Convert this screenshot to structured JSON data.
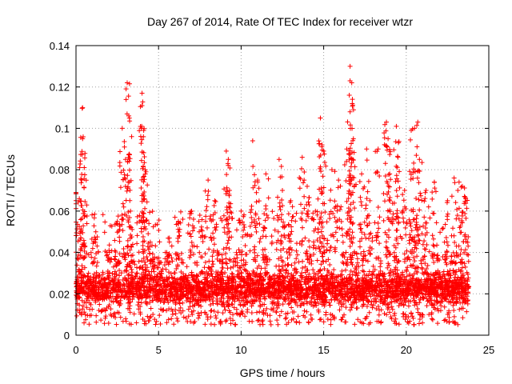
{
  "chart_data": {
    "type": "scatter",
    "title": "Day 267 of 2014, Rate Of TEC Index for receiver wtzr",
    "xlabel": "GPS time / hours",
    "ylabel": "ROTI / TECUs",
    "xlim": [
      0,
      25
    ],
    "ylim": [
      0,
      0.14
    ],
    "xticks": [
      0,
      5,
      10,
      15,
      20,
      25
    ],
    "yticks": [
      0,
      0.02,
      0.04,
      0.06,
      0.08,
      0.1,
      0.12,
      0.14
    ],
    "grid": true,
    "marker": "+",
    "color": "#ff0000",
    "data_range_hours": [
      0,
      23.8
    ],
    "baseline": {
      "typical_min": 0.005,
      "typical_max": 0.04
    },
    "peaks": [
      {
        "x": 0.0,
        "y": 0.069
      },
      {
        "x": 0.2,
        "y": 0.066
      },
      {
        "x": 0.4,
        "y": 0.11
      },
      {
        "x": 0.4,
        "y": 0.095
      },
      {
        "x": 0.5,
        "y": 0.081
      },
      {
        "x": 1.2,
        "y": 0.05
      },
      {
        "x": 2.0,
        "y": 0.041
      },
      {
        "x": 2.5,
        "y": 0.055
      },
      {
        "x": 2.8,
        "y": 0.1
      },
      {
        "x": 3.0,
        "y": 0.085
      },
      {
        "x": 3.1,
        "y": 0.122
      },
      {
        "x": 3.2,
        "y": 0.106
      },
      {
        "x": 3.3,
        "y": 0.06
      },
      {
        "x": 4.0,
        "y": 0.117
      },
      {
        "x": 4.0,
        "y": 0.111
      },
      {
        "x": 4.1,
        "y": 0.099
      },
      {
        "x": 4.2,
        "y": 0.078
      },
      {
        "x": 4.5,
        "y": 0.045
      },
      {
        "x": 5.5,
        "y": 0.04
      },
      {
        "x": 6.2,
        "y": 0.055
      },
      {
        "x": 7.0,
        "y": 0.06
      },
      {
        "x": 7.5,
        "y": 0.058
      },
      {
        "x": 8.0,
        "y": 0.075
      },
      {
        "x": 8.4,
        "y": 0.065
      },
      {
        "x": 9.1,
        "y": 0.089
      },
      {
        "x": 9.2,
        "y": 0.083
      },
      {
        "x": 9.3,
        "y": 0.07
      },
      {
        "x": 10.0,
        "y": 0.06
      },
      {
        "x": 10.7,
        "y": 0.094
      },
      {
        "x": 11.0,
        "y": 0.075
      },
      {
        "x": 11.5,
        "y": 0.078
      },
      {
        "x": 12.3,
        "y": 0.085
      },
      {
        "x": 12.5,
        "y": 0.07
      },
      {
        "x": 13.0,
        "y": 0.065
      },
      {
        "x": 13.7,
        "y": 0.086
      },
      {
        "x": 14.0,
        "y": 0.072
      },
      {
        "x": 14.5,
        "y": 0.06
      },
      {
        "x": 14.8,
        "y": 0.105
      },
      {
        "x": 14.9,
        "y": 0.092
      },
      {
        "x": 15.0,
        "y": 0.089
      },
      {
        "x": 15.5,
        "y": 0.08
      },
      {
        "x": 15.9,
        "y": 0.075
      },
      {
        "x": 16.4,
        "y": 0.09
      },
      {
        "x": 16.6,
        "y": 0.13
      },
      {
        "x": 16.7,
        "y": 0.122
      },
      {
        "x": 16.6,
        "y": 0.108
      },
      {
        "x": 16.8,
        "y": 0.095
      },
      {
        "x": 17.3,
        "y": 0.078
      },
      {
        "x": 17.6,
        "y": 0.09
      },
      {
        "x": 17.8,
        "y": 0.065
      },
      {
        "x": 18.3,
        "y": 0.09
      },
      {
        "x": 18.8,
        "y": 0.103
      },
      {
        "x": 18.9,
        "y": 0.095
      },
      {
        "x": 19.0,
        "y": 0.078
      },
      {
        "x": 19.4,
        "y": 0.101
      },
      {
        "x": 19.5,
        "y": 0.086
      },
      {
        "x": 19.9,
        "y": 0.07
      },
      {
        "x": 20.3,
        "y": 0.099
      },
      {
        "x": 20.5,
        "y": 0.1
      },
      {
        "x": 20.7,
        "y": 0.103
      },
      {
        "x": 20.8,
        "y": 0.085
      },
      {
        "x": 21.2,
        "y": 0.07
      },
      {
        "x": 21.7,
        "y": 0.074
      },
      {
        "x": 22.5,
        "y": 0.065
      },
      {
        "x": 22.9,
        "y": 0.076
      },
      {
        "x": 23.2,
        "y": 0.074
      },
      {
        "x": 23.4,
        "y": 0.072
      },
      {
        "x": 23.6,
        "y": 0.066
      }
    ]
  }
}
